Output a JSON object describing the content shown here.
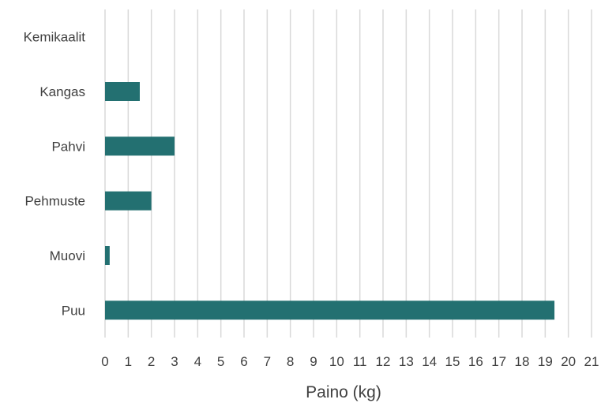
{
  "chart_data": {
    "type": "bar",
    "orientation": "horizontal",
    "categories": [
      "Puu",
      "Muovi",
      "Pehmuste",
      "Pahvi",
      "Kangas",
      "Kemikaalit"
    ],
    "values": [
      19.4,
      0.2,
      2.0,
      3.0,
      1.5,
      0
    ],
    "xlabel": "Paino (kg)",
    "ylabel": "",
    "xlim": [
      0,
      21
    ],
    "xticks": [
      "0",
      "1",
      "2",
      "3",
      "4",
      "5",
      "6",
      "7",
      "8",
      "9",
      "10",
      "11",
      "12",
      "13",
      "14",
      "15",
      "16",
      "17",
      "18",
      "19",
      "20",
      "21"
    ],
    "grid": "vertical",
    "colors": {
      "bar": "#237071",
      "grid": "#d9d9d9",
      "text": "#404040"
    }
  }
}
